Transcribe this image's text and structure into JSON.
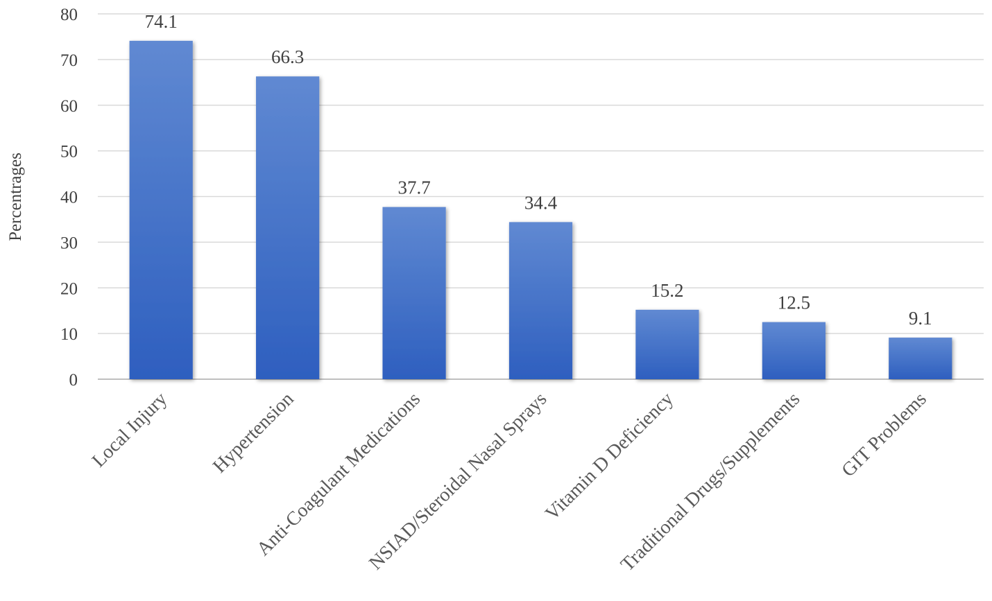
{
  "chart_data": {
    "type": "bar",
    "title": "",
    "xlabel": "",
    "ylabel": "Percentrages",
    "ylim": [
      0,
      80
    ],
    "yticks": [
      0,
      10,
      20,
      30,
      40,
      50,
      60,
      70,
      80
    ],
    "grid": true,
    "legend": "none",
    "categories": [
      "Local Injury",
      "Hypertension",
      "Anti-Coagulant Medications",
      "NSIAD/Steroidal Nasal Sprays",
      "Vitamin D Deficiency",
      "Traditional Drugs/Supplements",
      "GIT Problems"
    ],
    "values": [
      74.1,
      66.3,
      37.7,
      34.4,
      15.2,
      12.5,
      9.1
    ],
    "data_labels": [
      "74.1",
      "66.3",
      "37.7",
      "34.4",
      "15.2",
      "12.5",
      "9.1"
    ],
    "colors": {
      "bar_light": "#6089d2",
      "bar_dark": "#2e5fbf",
      "grid": "#d9d9d9",
      "text": "#404040"
    }
  }
}
